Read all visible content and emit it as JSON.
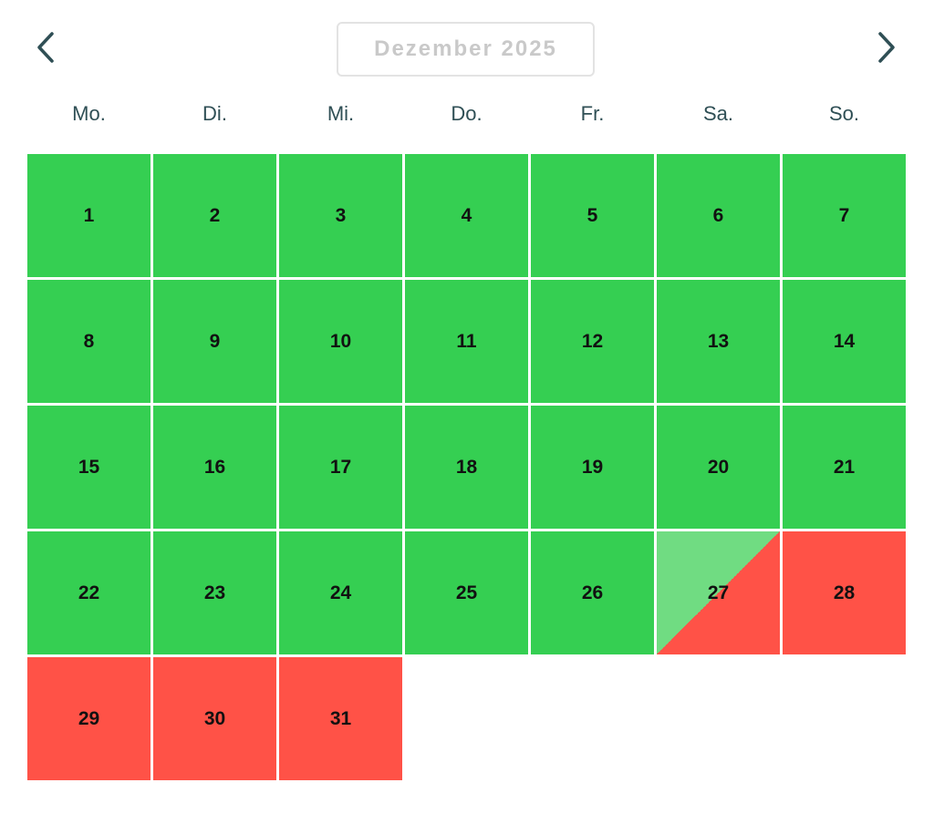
{
  "calendar": {
    "month_label": "Dezember 2025",
    "prev_icon": "chevron-left-icon",
    "next_icon": "chevron-right-icon",
    "weekdays": [
      "Mo.",
      "Di.",
      "Mi.",
      "Do.",
      "Fr.",
      "Sa.",
      "So."
    ],
    "colors": {
      "available": "#35cf52",
      "booked": "#ff5247",
      "changeover_light": "#70dc82"
    },
    "days": [
      {
        "day": "1",
        "status": "available"
      },
      {
        "day": "2",
        "status": "available"
      },
      {
        "day": "3",
        "status": "available"
      },
      {
        "day": "4",
        "status": "available"
      },
      {
        "day": "5",
        "status": "available"
      },
      {
        "day": "6",
        "status": "available"
      },
      {
        "day": "7",
        "status": "available"
      },
      {
        "day": "8",
        "status": "available"
      },
      {
        "day": "9",
        "status": "available"
      },
      {
        "day": "10",
        "status": "available"
      },
      {
        "day": "11",
        "status": "available"
      },
      {
        "day": "12",
        "status": "available"
      },
      {
        "day": "13",
        "status": "available"
      },
      {
        "day": "14",
        "status": "available"
      },
      {
        "day": "15",
        "status": "available"
      },
      {
        "day": "16",
        "status": "available"
      },
      {
        "day": "17",
        "status": "available"
      },
      {
        "day": "18",
        "status": "available"
      },
      {
        "day": "19",
        "status": "available"
      },
      {
        "day": "20",
        "status": "available"
      },
      {
        "day": "21",
        "status": "available"
      },
      {
        "day": "22",
        "status": "available"
      },
      {
        "day": "23",
        "status": "available"
      },
      {
        "day": "24",
        "status": "available"
      },
      {
        "day": "25",
        "status": "available"
      },
      {
        "day": "26",
        "status": "available"
      },
      {
        "day": "27",
        "status": "changeover"
      },
      {
        "day": "28",
        "status": "booked"
      },
      {
        "day": "29",
        "status": "booked"
      },
      {
        "day": "30",
        "status": "booked"
      },
      {
        "day": "31",
        "status": "booked"
      }
    ]
  }
}
